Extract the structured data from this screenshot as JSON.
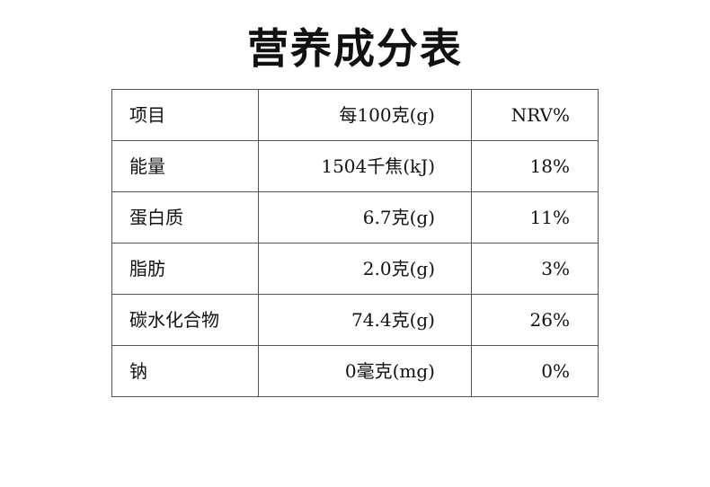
{
  "title": "营养成分表",
  "table": {
    "header": [
      "项目",
      "每100克(g)",
      "NRV%"
    ],
    "rows": [
      [
        "能量",
        "1504千焦(kJ)",
        "18%"
      ],
      [
        "蛋白质",
        "6.7克(g)",
        "11%"
      ],
      [
        "脂肪",
        "2.0克(g)",
        "3%"
      ],
      [
        "碳水化合物",
        "74.4克(g)",
        "26%"
      ],
      [
        "钠",
        "0毫克(mg)",
        "0%"
      ]
    ]
  }
}
